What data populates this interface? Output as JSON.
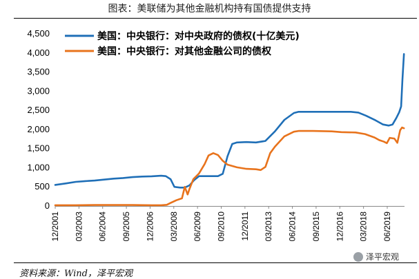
{
  "title": "图表：美联储为其他金融机构持有国债提供支持",
  "source": "资料来源：Wind，泽平宏观",
  "watermark": "泽平宏观",
  "chart_data": {
    "type": "line",
    "title": "图表：美联储为其他金融机构持有国债提供支持",
    "xlabel": "",
    "ylabel": "",
    "ylim": [
      0,
      4500
    ],
    "yticks": [
      0,
      500,
      1000,
      1500,
      2000,
      2500,
      3000,
      3500,
      4000,
      4500
    ],
    "ytick_labels": [
      "0",
      "500",
      "1,000",
      "1,500",
      "2,000",
      "2,500",
      "3,000",
      "3,500",
      "4,000",
      "4,500"
    ],
    "xlim": [
      2001.92,
      2020.33
    ],
    "xticks": [
      {
        "label": "12/2001",
        "x": 2001.92
      },
      {
        "label": "03/2003",
        "x": 2003.17
      },
      {
        "label": "06/2004",
        "x": 2004.42
      },
      {
        "label": "09/2005",
        "x": 2005.67
      },
      {
        "label": "12/2006",
        "x": 2006.92
      },
      {
        "label": "03/2008",
        "x": 2008.17
      },
      {
        "label": "06/2009",
        "x": 2009.42
      },
      {
        "label": "09/2010",
        "x": 2010.67
      },
      {
        "label": "12/2011",
        "x": 2011.92
      },
      {
        "label": "03/2013",
        "x": 2013.17
      },
      {
        "label": "06/2014",
        "x": 2014.42
      },
      {
        "label": "09/2015",
        "x": 2015.67
      },
      {
        "label": "12/2016",
        "x": 2016.92
      },
      {
        "label": "03/2018",
        "x": 2018.17
      },
      {
        "label": "06/2019",
        "x": 2019.42
      }
    ],
    "legend_position": "top-left",
    "series": [
      {
        "name": "美国：中央银行：对中央政府的债权(十亿美元)",
        "color": "#1f6fb7",
        "points": [
          [
            2001.92,
            550
          ],
          [
            2002.5,
            590
          ],
          [
            2003.0,
            630
          ],
          [
            2003.5,
            650
          ],
          [
            2004.0,
            665
          ],
          [
            2004.5,
            690
          ],
          [
            2005.0,
            715
          ],
          [
            2005.5,
            730
          ],
          [
            2006.0,
            755
          ],
          [
            2006.5,
            768
          ],
          [
            2007.0,
            775
          ],
          [
            2007.5,
            790
          ],
          [
            2007.75,
            780
          ],
          [
            2008.0,
            700
          ],
          [
            2008.2,
            500
          ],
          [
            2008.5,
            480
          ],
          [
            2008.75,
            480
          ],
          [
            2009.0,
            540
          ],
          [
            2009.25,
            680
          ],
          [
            2009.5,
            780
          ],
          [
            2010.0,
            780
          ],
          [
            2010.5,
            780
          ],
          [
            2010.75,
            840
          ],
          [
            2011.0,
            1300
          ],
          [
            2011.25,
            1620
          ],
          [
            2011.5,
            1660
          ],
          [
            2012.0,
            1670
          ],
          [
            2012.5,
            1660
          ],
          [
            2013.0,
            1700
          ],
          [
            2013.5,
            1950
          ],
          [
            2014.0,
            2250
          ],
          [
            2014.5,
            2430
          ],
          [
            2014.75,
            2460
          ],
          [
            2015.5,
            2460
          ],
          [
            2016.5,
            2460
          ],
          [
            2017.5,
            2460
          ],
          [
            2017.9,
            2440
          ],
          [
            2018.3,
            2360
          ],
          [
            2018.8,
            2240
          ],
          [
            2019.2,
            2130
          ],
          [
            2019.5,
            2100
          ],
          [
            2019.7,
            2130
          ],
          [
            2019.9,
            2300
          ],
          [
            2020.05,
            2450
          ],
          [
            2020.15,
            2600
          ],
          [
            2020.22,
            3300
          ],
          [
            2020.3,
            3970
          ]
        ]
      },
      {
        "name": "美国：中央银行：对其他金融公司的债权",
        "color": "#e8731c",
        "points": [
          [
            2001.92,
            20
          ],
          [
            2003.0,
            20
          ],
          [
            2004.0,
            25
          ],
          [
            2005.0,
            25
          ],
          [
            2006.0,
            25
          ],
          [
            2007.0,
            20
          ],
          [
            2007.5,
            20
          ],
          [
            2007.8,
            30
          ],
          [
            2008.0,
            80
          ],
          [
            2008.3,
            150
          ],
          [
            2008.6,
            200
          ],
          [
            2008.75,
            500
          ],
          [
            2008.9,
            300
          ],
          [
            2009.0,
            450
          ],
          [
            2009.2,
            700
          ],
          [
            2009.5,
            850
          ],
          [
            2009.8,
            1100
          ],
          [
            2010.0,
            1320
          ],
          [
            2010.25,
            1380
          ],
          [
            2010.5,
            1330
          ],
          [
            2010.75,
            1180
          ],
          [
            2011.0,
            1080
          ],
          [
            2011.5,
            1010
          ],
          [
            2012.0,
            970
          ],
          [
            2012.5,
            960
          ],
          [
            2012.75,
            940
          ],
          [
            2013.0,
            1020
          ],
          [
            2013.25,
            1380
          ],
          [
            2013.5,
            1550
          ],
          [
            2014.0,
            1820
          ],
          [
            2014.5,
            1940
          ],
          [
            2014.75,
            1960
          ],
          [
            2015.5,
            1960
          ],
          [
            2016.5,
            1950
          ],
          [
            2017.0,
            1930
          ],
          [
            2017.75,
            1920
          ],
          [
            2018.25,
            1880
          ],
          [
            2018.75,
            1790
          ],
          [
            2019.0,
            1720
          ],
          [
            2019.25,
            1680
          ],
          [
            2019.4,
            1640
          ],
          [
            2019.55,
            1780
          ],
          [
            2019.8,
            1760
          ],
          [
            2019.95,
            1650
          ],
          [
            2020.1,
            1980
          ],
          [
            2020.2,
            2050
          ],
          [
            2020.3,
            2030
          ]
        ]
      }
    ]
  }
}
